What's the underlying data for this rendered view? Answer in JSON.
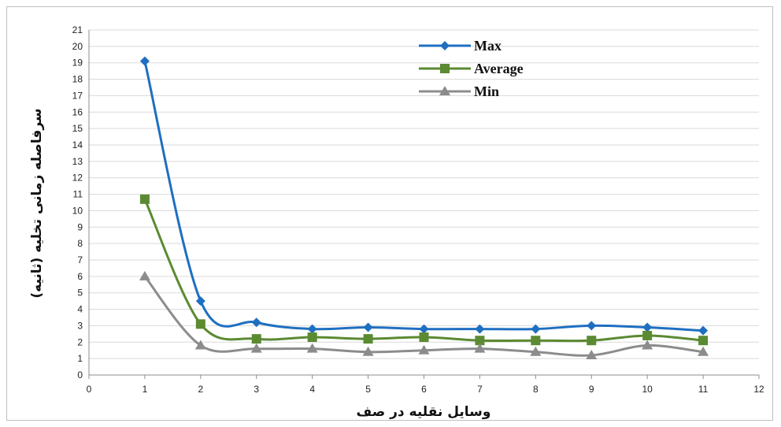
{
  "chart_data": {
    "type": "line",
    "title": "",
    "xlabel": "وسایل نقلیه در صف",
    "ylabel": "سرفاصله زمانی تخلیه (ثانیه)",
    "xlim": [
      0,
      12
    ],
    "ylim": [
      0,
      21
    ],
    "x_ticks": [
      0,
      1,
      2,
      3,
      4,
      5,
      6,
      7,
      8,
      9,
      10,
      11,
      12
    ],
    "y_ticks": [
      0,
      1,
      2,
      3,
      4,
      5,
      6,
      7,
      8,
      9,
      10,
      11,
      12,
      13,
      14,
      15,
      16,
      17,
      18,
      19,
      20,
      21
    ],
    "grid": true,
    "legend_position": "top-center",
    "x": [
      1,
      2,
      3,
      4,
      5,
      6,
      7,
      8,
      9,
      10,
      11
    ],
    "series": [
      {
        "name": "Max",
        "color": "#1f6fc1",
        "marker": "diamond",
        "values": [
          19.1,
          4.5,
          3.2,
          2.8,
          2.9,
          2.8,
          2.8,
          2.8,
          3.0,
          2.9,
          2.7
        ]
      },
      {
        "name": "Average",
        "color": "#5b8a32",
        "marker": "square",
        "values": [
          10.7,
          3.1,
          2.2,
          2.3,
          2.2,
          2.3,
          2.1,
          2.1,
          2.1,
          2.4,
          2.1
        ]
      },
      {
        "name": "Min",
        "color": "#8c8c8c",
        "marker": "triangle",
        "values": [
          6.0,
          1.8,
          1.6,
          1.6,
          1.4,
          1.5,
          1.6,
          1.4,
          1.2,
          1.8,
          1.4
        ]
      }
    ]
  }
}
